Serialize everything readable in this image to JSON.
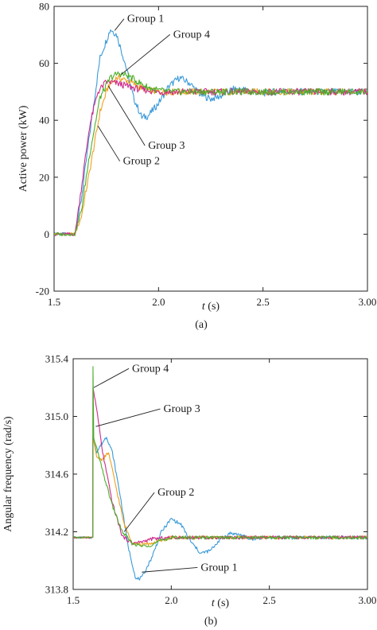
{
  "chart_data": [
    {
      "type": "line",
      "panel_label": "(a)",
      "xlabel": "t (s)",
      "xlabel_var": "t",
      "xlabel_unit": " (s)",
      "ylabel": "Active power (kW)",
      "xlim": [
        1.5,
        3.0
      ],
      "ylim": [
        -20,
        80
      ],
      "xticks": [
        1.5,
        2.0,
        2.5,
        3.0
      ],
      "xtick_labels": [
        "1.5",
        "2.0",
        "2.5",
        "3.00"
      ],
      "yticks": [
        -20,
        0,
        20,
        40,
        60,
        80
      ],
      "ytick_labels": [
        "-20",
        "0",
        "20",
        "40",
        "60",
        "80"
      ],
      "grid": false,
      "series": [
        {
          "name": "Group 1",
          "color": "#3a9ad9",
          "points": [
            [
              1.5,
              0
            ],
            [
              1.6,
              0
            ],
            [
              1.63,
              12
            ],
            [
              1.67,
              35
            ],
            [
              1.72,
              62
            ],
            [
              1.77,
              72
            ],
            [
              1.8,
              70
            ],
            [
              1.84,
              60
            ],
            [
              1.88,
              48
            ],
            [
              1.92,
              41
            ],
            [
              1.95,
              41.5
            ],
            [
              2.0,
              46
            ],
            [
              2.05,
              52
            ],
            [
              2.1,
              55
            ],
            [
              2.15,
              53
            ],
            [
              2.2,
              49
            ],
            [
              2.25,
              47.5
            ],
            [
              2.3,
              48.5
            ],
            [
              2.35,
              50.8
            ],
            [
              2.4,
              51
            ],
            [
              2.45,
              50
            ],
            [
              2.5,
              49.5
            ],
            [
              2.6,
              50.3
            ],
            [
              2.7,
              50
            ],
            [
              3.0,
              50
            ]
          ]
        },
        {
          "name": "Group 2",
          "color": "#f0a020",
          "points": [
            [
              1.5,
              0
            ],
            [
              1.6,
              0
            ],
            [
              1.63,
              6
            ],
            [
              1.67,
              22
            ],
            [
              1.72,
              43
            ],
            [
              1.76,
              52
            ],
            [
              1.8,
              55
            ],
            [
              1.85,
              54
            ],
            [
              1.9,
              52
            ],
            [
              1.95,
              50.5
            ],
            [
              2.0,
              50
            ],
            [
              2.1,
              50
            ],
            [
              3.0,
              50
            ]
          ]
        },
        {
          "name": "Group 3",
          "color": "#d02a8a",
          "points": [
            [
              1.5,
              0
            ],
            [
              1.6,
              0
            ],
            [
              1.63,
              16
            ],
            [
              1.67,
              38
            ],
            [
              1.71,
              50
            ],
            [
              1.75,
              53.5
            ],
            [
              1.8,
              53
            ],
            [
              1.85,
              52
            ],
            [
              1.9,
              51
            ],
            [
              1.95,
              50.5
            ],
            [
              2.0,
              50
            ],
            [
              3.0,
              50
            ]
          ]
        },
        {
          "name": "Group 4",
          "color": "#4caf2c",
          "points": [
            [
              1.5,
              0
            ],
            [
              1.6,
              0
            ],
            [
              1.63,
              8
            ],
            [
              1.67,
              28
            ],
            [
              1.72,
              48
            ],
            [
              1.77,
              55
            ],
            [
              1.81,
              56.5
            ],
            [
              1.86,
              55.5
            ],
            [
              1.9,
              53.5
            ],
            [
              1.95,
              51.5
            ],
            [
              2.0,
              50.5
            ],
            [
              2.05,
              50
            ],
            [
              3.0,
              50
            ]
          ]
        }
      ],
      "annotations": [
        {
          "text": "Group 1",
          "x": 1.85,
          "y": 74.5,
          "to_x": 1.79,
          "to_y": 71.5
        },
        {
          "text": "Group 4",
          "x": 2.07,
          "y": 69,
          "to_x": 1.82,
          "to_y": 56
        },
        {
          "text": "Group 3",
          "x": 1.95,
          "y": 30,
          "to_x": 1.76,
          "to_y": 52
        },
        {
          "text": "Group 2",
          "x": 1.83,
          "y": 24.5,
          "to_x": 1.71,
          "to_y": 38
        }
      ]
    },
    {
      "type": "line",
      "panel_label": "(b)",
      "xlabel": "t (s)",
      "xlabel_var": "t",
      "xlabel_unit": " (s)",
      "ylabel": "Angular frequency (rad/s)",
      "xlim": [
        1.5,
        3.0
      ],
      "ylim": [
        313.8,
        315.4
      ],
      "xticks": [
        1.5,
        2.0,
        2.5,
        3.0
      ],
      "xtick_labels": [
        "1.5",
        "2.0",
        "2.5",
        "3.00"
      ],
      "yticks": [
        313.8,
        314.2,
        314.6,
        315.0,
        315.4
      ],
      "ytick_labels": [
        "313.8",
        "314.2",
        "314.6",
        "315.0",
        "315.4"
      ],
      "grid": false,
      "series": [
        {
          "name": "Group 1",
          "color": "#3a9ad9",
          "points": [
            [
              1.5,
              314.16
            ],
            [
              1.6,
              314.16
            ],
            [
              1.601,
              314.86
            ],
            [
              1.62,
              314.75
            ],
            [
              1.64,
              314.8
            ],
            [
              1.67,
              314.86
            ],
            [
              1.7,
              314.75
            ],
            [
              1.74,
              314.45
            ],
            [
              1.78,
              314.1
            ],
            [
              1.82,
              313.87
            ],
            [
              1.85,
              313.88
            ],
            [
              1.9,
              314.02
            ],
            [
              1.95,
              314.2
            ],
            [
              2.0,
              314.29
            ],
            [
              2.05,
              314.25
            ],
            [
              2.1,
              314.13
            ],
            [
              2.15,
              314.05
            ],
            [
              2.2,
              314.07
            ],
            [
              2.25,
              314.15
            ],
            [
              2.3,
              314.19
            ],
            [
              2.35,
              314.18
            ],
            [
              2.4,
              314.15
            ],
            [
              2.5,
              314.16
            ],
            [
              3.0,
              314.16
            ]
          ]
        },
        {
          "name": "Group 2",
          "color": "#f0a020",
          "points": [
            [
              1.5,
              314.16
            ],
            [
              1.6,
              314.16
            ],
            [
              1.601,
              314.85
            ],
            [
              1.62,
              314.72
            ],
            [
              1.65,
              314.7
            ],
            [
              1.68,
              314.75
            ],
            [
              1.72,
              314.5
            ],
            [
              1.76,
              314.25
            ],
            [
              1.8,
              314.13
            ],
            [
              1.85,
              314.11
            ],
            [
              1.9,
              314.12
            ],
            [
              1.95,
              314.14
            ],
            [
              2.0,
              314.16
            ],
            [
              3.0,
              314.16
            ]
          ]
        },
        {
          "name": "Group 3",
          "color": "#d02a8a",
          "points": [
            [
              1.5,
              314.16
            ],
            [
              1.6,
              314.16
            ],
            [
              1.601,
              315.2
            ],
            [
              1.62,
              315.05
            ],
            [
              1.65,
              314.75
            ],
            [
              1.7,
              314.4
            ],
            [
              1.75,
              314.17
            ],
            [
              1.8,
              314.12
            ],
            [
              1.85,
              314.13
            ],
            [
              1.9,
              314.15
            ],
            [
              2.0,
              314.16
            ],
            [
              3.0,
              314.16
            ]
          ]
        },
        {
          "name": "Group 4",
          "color": "#4caf2c",
          "points": [
            [
              1.5,
              314.16
            ],
            [
              1.6,
              314.16
            ],
            [
              1.601,
              315.34
            ],
            [
              1.605,
              314.85
            ],
            [
              1.62,
              314.78
            ],
            [
              1.65,
              314.62
            ],
            [
              1.7,
              314.38
            ],
            [
              1.75,
              314.2
            ],
            [
              1.8,
              314.12
            ],
            [
              1.85,
              314.1
            ],
            [
              1.9,
              314.11
            ],
            [
              1.95,
              314.14
            ],
            [
              2.0,
              314.16
            ],
            [
              3.0,
              314.16
            ]
          ]
        }
      ],
      "annotations": [
        {
          "text": "Group 4",
          "x": 1.8,
          "y": 315.31,
          "to_x": 1.605,
          "to_y": 315.2
        },
        {
          "text": "Group 3",
          "x": 1.96,
          "y": 315.03,
          "to_x": 1.615,
          "to_y": 314.93
        },
        {
          "text": "Group 2",
          "x": 1.93,
          "y": 314.45,
          "to_x": 1.76,
          "to_y": 314.2
        },
        {
          "text": "Group 1",
          "x": 2.15,
          "y": 313.93,
          "to_x": 1.85,
          "to_y": 313.92
        }
      ]
    }
  ]
}
